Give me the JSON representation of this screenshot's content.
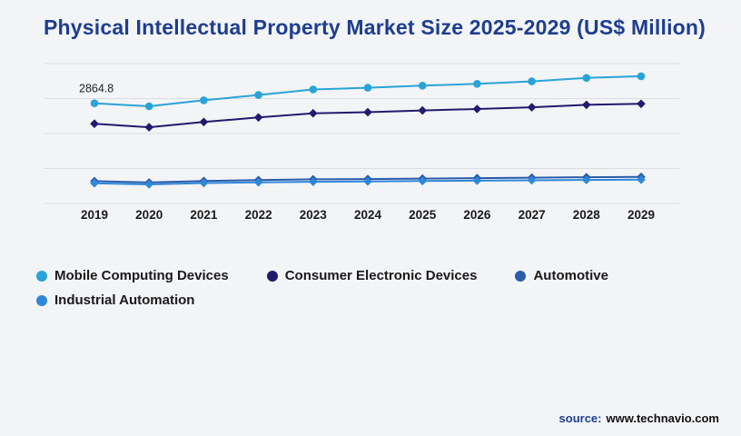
{
  "chart_data": {
    "type": "line",
    "title": "Physical Intellectual Property Market Size 2025-2029 (US$ Million)",
    "categories": [
      "2019",
      "2020",
      "2021",
      "2022",
      "2023",
      "2024",
      "2025",
      "2026",
      "2027",
      "2028",
      "2029"
    ],
    "series": [
      {
        "name": "Mobile Computing Devices",
        "color": "#29a3d7",
        "marker": "circle",
        "values": [
          2864.8,
          2780,
          2950,
          3100,
          3260,
          3310,
          3370,
          3420,
          3490,
          3590,
          3640
        ]
      },
      {
        "name": "Consumer Electronic Devices",
        "color": "#211a6d",
        "marker": "diamond",
        "values": [
          2280,
          2180,
          2330,
          2460,
          2580,
          2610,
          2660,
          2700,
          2750,
          2820,
          2850
        ]
      },
      {
        "name": "Automotive",
        "color": "#2a5caa",
        "marker": "diamond",
        "values": [
          640,
          600,
          645,
          670,
          690,
          700,
          712,
          725,
          738,
          750,
          760
        ]
      },
      {
        "name": "Industrial Automation",
        "color": "#2f87d8",
        "marker": "diamond",
        "values": [
          580,
          545,
          585,
          605,
          622,
          632,
          642,
          652,
          662,
          672,
          680
        ]
      }
    ],
    "ylim": [
      0,
      4000
    ],
    "y_gridlines": [
      0,
      1000,
      2000,
      3000,
      4000
    ],
    "grid": "horizontal",
    "legend_position": "bottom",
    "annotations": [
      {
        "text": "2864.8",
        "series": "Mobile Computing Devices",
        "x": "2019",
        "value": 2864.8
      }
    ]
  },
  "source": {
    "label": "source:",
    "url": "www.technavio.com"
  },
  "colors": {
    "title": "#1d3e8f",
    "background": "#f3f4f6",
    "tick_label": "#1a1a1a",
    "gridline": "#dcdde1",
    "annotation": "#222222"
  }
}
